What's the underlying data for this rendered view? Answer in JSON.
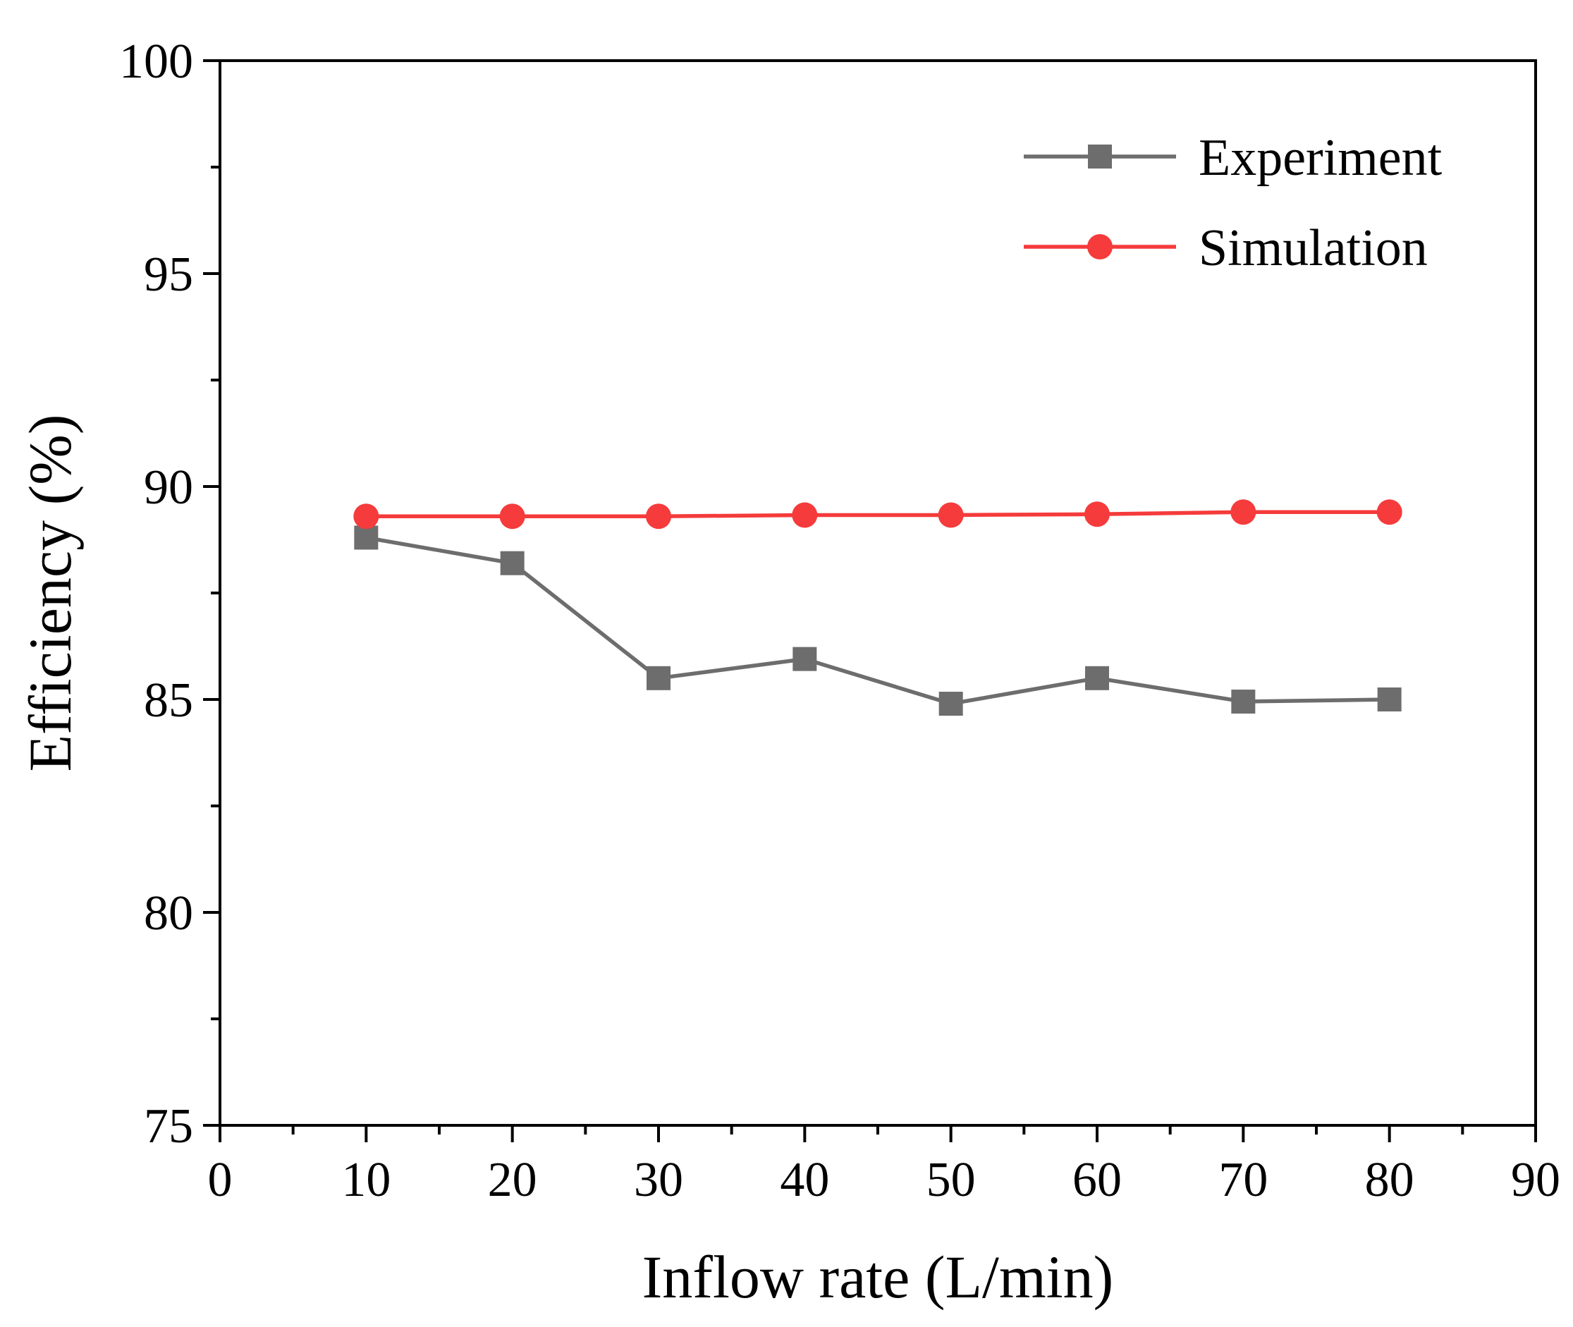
{
  "chart_data": {
    "type": "line",
    "title": "",
    "xlabel": "Inflow rate (L/min)",
    "ylabel": "Efficiency (%)",
    "xlim": [
      0,
      90
    ],
    "ylim": [
      75,
      100
    ],
    "x_ticks": [
      0,
      10,
      20,
      30,
      40,
      50,
      60,
      70,
      80,
      90
    ],
    "x_tick_labels": [
      "0",
      "10",
      "20",
      "30",
      "40",
      "50",
      "60",
      "70",
      "80",
      "90"
    ],
    "y_ticks": [
      75,
      80,
      85,
      90,
      95,
      100
    ],
    "y_tick_labels": [
      "75",
      "80",
      "85",
      "90",
      "95",
      "100"
    ],
    "x_minor_step": 5,
    "y_minor_step": 2.5,
    "grid": false,
    "legend_position": "top-right",
    "series": [
      {
        "name": "Experiment",
        "color": "#6d6d6d",
        "marker": "square",
        "x": [
          10,
          20,
          30,
          40,
          50,
          60,
          70,
          80
        ],
        "y": [
          88.8,
          88.2,
          85.5,
          85.95,
          84.9,
          85.5,
          84.95,
          85.0
        ]
      },
      {
        "name": "Simulation",
        "color": "#f53b3b",
        "marker": "circle",
        "x": [
          10,
          20,
          30,
          40,
          50,
          60,
          70,
          80
        ],
        "y": [
          89.3,
          89.3,
          89.3,
          89.33,
          89.33,
          89.35,
          89.4,
          89.4
        ]
      }
    ]
  }
}
